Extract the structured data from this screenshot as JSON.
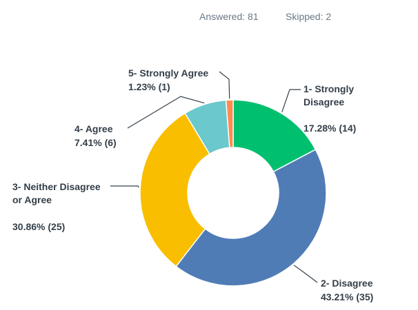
{
  "chart_data": {
    "type": "donut",
    "header_texts": [
      "Answered: 81",
      "Skipped: 2"
    ],
    "categories": [
      "1- Strongly Disagree",
      "2- Disagree",
      "3- Neither Disagree or Agree",
      "4- Agree",
      "5- Strongly Agree"
    ],
    "values": [
      17.28,
      43.21,
      30.86,
      7.41,
      1.23
    ],
    "value_labels": [
      "17.28% (14)",
      "43.21% (35)",
      "30.86% (25)",
      "7.41% (6)",
      "1.23% (1)"
    ],
    "colors": [
      "#00bf6f",
      "#507cb6",
      "#f9be00",
      "#6bc8cd",
      "#ff8b4f"
    ]
  }
}
